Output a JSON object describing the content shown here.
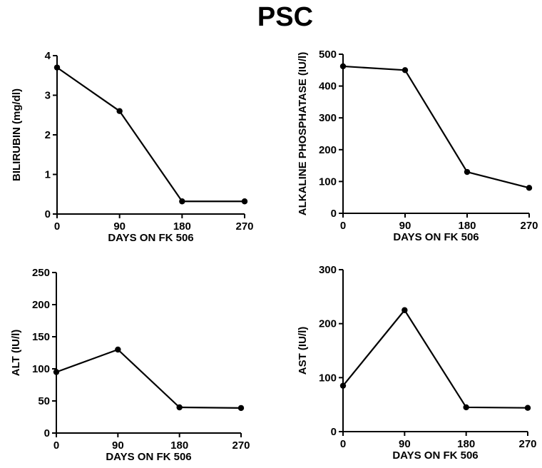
{
  "title": "PSC",
  "chart_data": [
    {
      "type": "line",
      "xlabel": "DAYS ON FK 506",
      "ylabel": "BILIRUBIN (mg/dl)",
      "x": [
        0,
        90,
        180,
        270
      ],
      "values": [
        3.7,
        2.6,
        0.32,
        0.32
      ],
      "xlim": [
        0,
        270
      ],
      "ylim": [
        0,
        4
      ],
      "xticks": [
        0,
        90,
        180,
        270
      ],
      "yticks": [
        0,
        1,
        2,
        3,
        4
      ],
      "grid": false
    },
    {
      "type": "line",
      "xlabel": "DAYS ON FK 506",
      "ylabel": "ALKALINE PHOSPHATASE (IU/l)",
      "x": [
        0,
        90,
        180,
        270
      ],
      "values": [
        462,
        450,
        130,
        80
      ],
      "xlim": [
        0,
        270
      ],
      "ylim": [
        0,
        500
      ],
      "xticks": [
        0,
        90,
        180,
        270
      ],
      "yticks": [
        0,
        100,
        200,
        300,
        400,
        500
      ],
      "grid": false
    },
    {
      "type": "line",
      "xlabel": "DAYS ON FK 506",
      "ylabel": "ALT (IU/l)",
      "x": [
        0,
        90,
        180,
        270
      ],
      "values": [
        95,
        130,
        40,
        39
      ],
      "xlim": [
        0,
        270
      ],
      "ylim": [
        0,
        250
      ],
      "xticks": [
        0,
        90,
        180,
        270
      ],
      "yticks": [
        0,
        50,
        100,
        150,
        200,
        250
      ],
      "grid": false
    },
    {
      "type": "line",
      "xlabel": "DAYS ON FK 506",
      "ylabel": "AST (IU/l)",
      "x": [
        0,
        90,
        180,
        270
      ],
      "values": [
        85,
        225,
        45,
        44
      ],
      "xlim": [
        0,
        270
      ],
      "ylim": [
        0,
        300
      ],
      "xticks": [
        0,
        90,
        180,
        270
      ],
      "yticks": [
        0,
        100,
        200,
        300
      ],
      "grid": false
    }
  ]
}
